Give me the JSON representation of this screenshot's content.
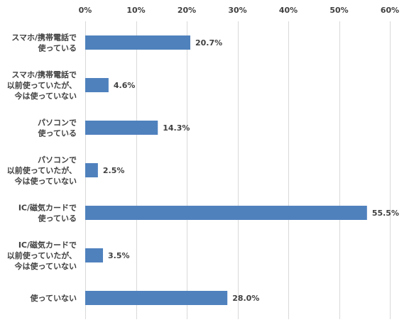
{
  "chart_data": {
    "type": "bar",
    "orientation": "horizontal",
    "categories": [
      [
        "スマホ/携帯電話で",
        "使っている"
      ],
      [
        "スマホ/携帯電話で",
        "以前使っていたが、",
        "今は使っていない"
      ],
      [
        "パソコンで",
        "使っている"
      ],
      [
        "パソコンで",
        "以前使っていたが、",
        "今は使っていない"
      ],
      [
        "IC/磁気カードで",
        "使っている"
      ],
      [
        "IC/磁気カードで",
        "以前使っていたが、",
        "今は使っていない"
      ],
      [
        "使っていない"
      ]
    ],
    "values": [
      20.7,
      4.6,
      14.3,
      2.5,
      55.5,
      3.5,
      28.0
    ],
    "value_labels": [
      "20.7%",
      "4.6%",
      "14.3%",
      "2.5%",
      "55.5%",
      "3.5%",
      "28.0%"
    ],
    "xlim": [
      0,
      60
    ],
    "ticks": [
      0,
      10,
      20,
      30,
      40,
      50,
      60
    ],
    "tick_labels": [
      "0%",
      "10%",
      "20%",
      "30%",
      "40%",
      "50%",
      "60%"
    ],
    "axis_position": "top",
    "grid": true,
    "legend": "none",
    "title": "",
    "xlabel": "",
    "ylabel": ""
  },
  "colors": {
    "bar": "#4F81BD",
    "grid": "#D9D9D9",
    "text": "#404040",
    "background": "#FFFFFF"
  }
}
